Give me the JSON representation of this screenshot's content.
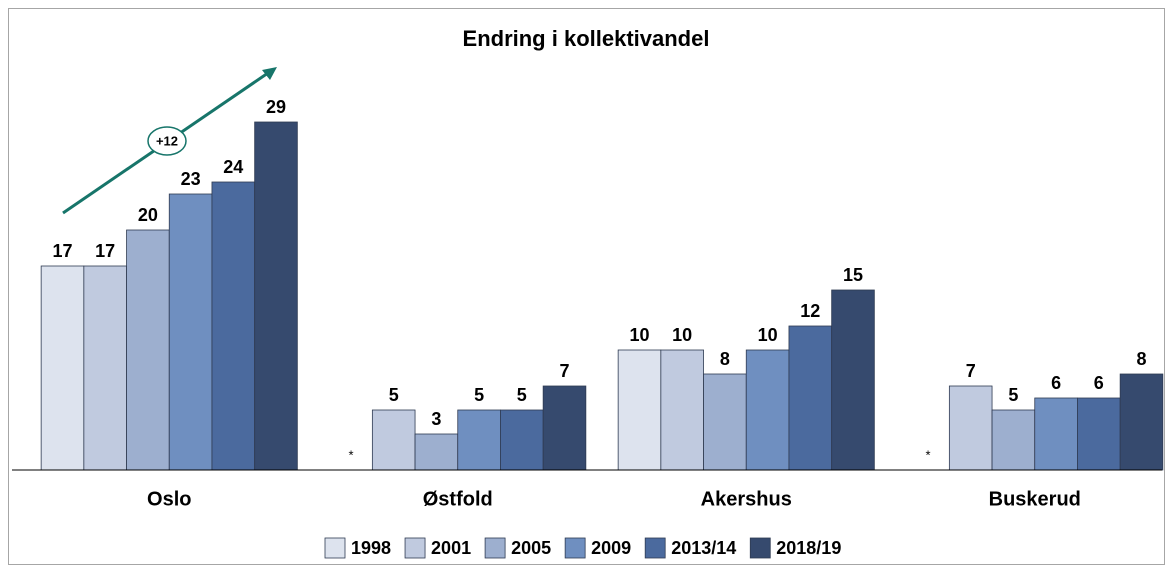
{
  "chart_data": {
    "type": "bar",
    "title": "Endring i kollektivandel",
    "annotation": "+12",
    "categories": [
      "Oslo",
      "Østfold",
      "Akershus",
      "Buskerud"
    ],
    "series": [
      {
        "name": "1998",
        "color": "#dde3ee",
        "values": [
          17,
          null,
          10,
          null
        ],
        "value_labels": [
          "17",
          "*",
          "10",
          "*"
        ]
      },
      {
        "name": "2001",
        "color": "#c0cadf",
        "values": [
          17,
          5,
          10,
          7
        ]
      },
      {
        "name": "2005",
        "color": "#9dafcf",
        "values": [
          20,
          3,
          8,
          5
        ]
      },
      {
        "name": "2009",
        "color": "#6f8fc0",
        "values": [
          23,
          5,
          10,
          6
        ]
      },
      {
        "name": "2013/14",
        "color": "#4b6a9e",
        "values": [
          24,
          5,
          12,
          6
        ]
      },
      {
        "name": "2018/19",
        "color": "#364a6e",
        "values": [
          29,
          7,
          15,
          8
        ]
      }
    ],
    "ylim": [
      0,
      30
    ],
    "legend": "bottom"
  }
}
